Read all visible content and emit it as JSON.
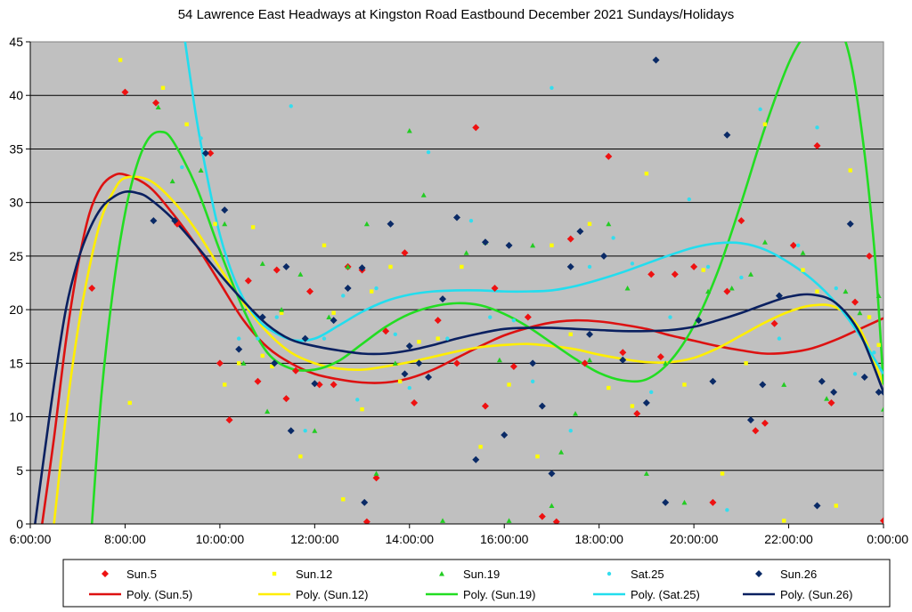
{
  "chart_data": {
    "type": "scatter",
    "title": "54 Lawrence East Headways at Kingston Road Eastbound December 2021  Sundays/Holidays",
    "xlabel": "",
    "ylabel": "",
    "xlim_hours": [
      6,
      24
    ],
    "ylim": [
      0,
      45
    ],
    "x_ticks": [
      "6:00:00",
      "8:00:00",
      "10:00:00",
      "12:00:00",
      "14:00:00",
      "16:00:00",
      "18:00:00",
      "20:00:00",
      "22:00:00",
      "0:00:00"
    ],
    "y_ticks": [
      0,
      5,
      10,
      15,
      20,
      25,
      30,
      35,
      40,
      45
    ],
    "grid": "horizontal",
    "legend_position": "bottom",
    "series": [
      {
        "name": "Sun.5",
        "color": "#ee1111",
        "marker": "diamond",
        "x": [
          7.3,
          8.0,
          8.65,
          9.1,
          9.8,
          10.0,
          10.2,
          10.6,
          10.8,
          11.2,
          11.4,
          11.6,
          11.9,
          12.1,
          12.4,
          12.7,
          13.0,
          13.1,
          13.3,
          13.5,
          13.9,
          14.1,
          14.6,
          15.0,
          15.4,
          15.6,
          15.8,
          16.2,
          16.5,
          16.8,
          17.1,
          17.4,
          17.7,
          18.2,
          18.5,
          18.8,
          19.1,
          19.3,
          19.6,
          20.0,
          20.4,
          20.7,
          21.0,
          21.3,
          21.5,
          21.7,
          22.1,
          22.6,
          22.9,
          23.4,
          23.7,
          24.0
        ],
        "y": [
          22,
          40.3,
          39.3,
          28,
          34.6,
          15,
          9.7,
          22.7,
          13.3,
          23.7,
          11.7,
          14.3,
          21.7,
          13,
          13,
          24,
          23.7,
          0.2,
          4.3,
          18,
          25.3,
          11.3,
          19,
          15,
          37,
          11,
          22,
          14.7,
          19.3,
          0.7,
          0.2,
          26.6,
          15,
          34.3,
          16,
          10.3,
          23.3,
          15.6,
          23.3,
          24,
          2,
          21.7,
          28.3,
          8.7,
          9.4,
          18.7,
          26,
          35.3,
          11.3,
          20.7,
          25,
          0.3
        ]
      },
      {
        "name": "Sun.12",
        "color": "#ffff00",
        "marker": "square",
        "x": [
          7.9,
          8.1,
          8.8,
          9.3,
          9.9,
          10.1,
          10.4,
          10.7,
          10.9,
          11.1,
          11.3,
          11.7,
          12.2,
          12.4,
          12.6,
          13.0,
          13.2,
          13.6,
          13.8,
          14.2,
          14.6,
          15.1,
          15.5,
          16.1,
          16.7,
          17.0,
          17.4,
          17.8,
          18.2,
          18.7,
          19.0,
          19.4,
          19.8,
          20.2,
          20.6,
          21.1,
          21.5,
          21.9,
          22.3,
          22.6,
          23.0,
          23.3,
          23.7,
          23.9
        ],
        "y": [
          43.3,
          11.3,
          40.7,
          37.3,
          28,
          13,
          15,
          27.7,
          15.7,
          14.7,
          19.7,
          6.3,
          26,
          19.7,
          2.3,
          10.7,
          21.7,
          24,
          13.3,
          17,
          17.3,
          24,
          7.2,
          13,
          6.3,
          26,
          17.7,
          28,
          12.7,
          11,
          32.7,
          15,
          13,
          23.7,
          4.7,
          15,
          37.3,
          0.3,
          23.7,
          21.7,
          1.7,
          33,
          19.3,
          16.7
        ]
      },
      {
        "name": "Sun.19",
        "color": "#22cc22",
        "marker": "triangle",
        "x": [
          8.7,
          9.0,
          9.6,
          10.1,
          10.5,
          10.9,
          11.0,
          11.3,
          11.7,
          12.0,
          12.3,
          12.7,
          13.1,
          13.3,
          13.7,
          14.0,
          14.3,
          14.7,
          15.2,
          15.6,
          15.9,
          16.1,
          16.6,
          17.0,
          17.2,
          17.5,
          17.8,
          18.2,
          18.6,
          19.0,
          19.4,
          19.8,
          20.3,
          20.8,
          21.2,
          21.5,
          21.9,
          22.3,
          22.8,
          23.2,
          23.5,
          23.9,
          24.0
        ],
        "y": [
          38.9,
          32,
          33,
          28,
          15,
          24.3,
          10.5,
          20,
          23.3,
          8.7,
          19.3,
          24,
          28,
          4.7,
          15,
          36.7,
          30.7,
          0.3,
          25.3,
          26.3,
          15.3,
          0.3,
          26,
          1.7,
          6.7,
          10.3,
          15.3,
          28,
          22,
          4.7,
          15,
          2,
          21.7,
          22,
          23.3,
          26.3,
          13,
          25.3,
          11.7,
          21.7,
          19.7,
          21.3,
          10.7
        ]
      },
      {
        "name": "Sat.25",
        "color": "#33ddee",
        "marker": "circle",
        "x": [
          9.2,
          9.6,
          10.4,
          10.8,
          11.2,
          11.5,
          11.8,
          12.2,
          12.6,
          12.9,
          13.3,
          13.7,
          14.0,
          14.4,
          14.8,
          15.3,
          15.7,
          16.2,
          16.6,
          17.0,
          17.4,
          17.8,
          18.3,
          18.7,
          19.1,
          19.5,
          19.9,
          20.3,
          20.7,
          21.0,
          21.4,
          21.8,
          22.2,
          22.6,
          23.0,
          23.4,
          23.8
        ],
        "y": [
          33.3,
          36,
          17.3,
          17.3,
          19.3,
          39,
          8.7,
          17.3,
          21.3,
          11.6,
          22,
          17.7,
          12.7,
          34.7,
          17.3,
          28.3,
          19.3,
          19,
          13.3,
          40.7,
          8.7,
          24,
          26.7,
          24.3,
          12.3,
          19.3,
          30.3,
          24,
          1.3,
          23,
          38.7,
          17.3,
          26,
          37,
          22,
          14,
          16
        ]
      },
      {
        "name": "Sun.26",
        "color": "#0a2a66",
        "marker": "diamond",
        "x": [
          8.6,
          9.05,
          9.7,
          10.1,
          10.4,
          10.9,
          11.15,
          11.4,
          11.5,
          11.8,
          12.0,
          12.4,
          12.7,
          13.0,
          13.05,
          13.6,
          13.9,
          14.0,
          14.2,
          14.4,
          14.7,
          15.0,
          15.4,
          15.6,
          16.0,
          16.1,
          16.6,
          16.8,
          17.0,
          17.4,
          17.6,
          17.8,
          18.1,
          18.5,
          19.0,
          19.2,
          19.4,
          20.1,
          20.4,
          20.7,
          21.2,
          21.45,
          21.8,
          22.6,
          22.7,
          22.95,
          23.3,
          23.6,
          23.9,
          24.0
        ],
        "y": [
          28.3,
          28.3,
          34.6,
          29.3,
          16.3,
          19.3,
          15,
          24,
          8.7,
          17.3,
          13.1,
          19,
          22,
          23.9,
          2,
          28,
          14,
          16.6,
          15,
          13.7,
          21,
          28.6,
          6,
          26.3,
          8.3,
          26,
          15,
          11,
          4.7,
          24,
          27.3,
          17.7,
          25,
          15.3,
          11.3,
          43.3,
          2,
          19,
          13.3,
          36.3,
          9.7,
          13,
          21.3,
          1.7,
          13.3,
          12.3,
          28,
          13.7,
          12.3,
          12.3
        ]
      }
    ],
    "trendlines": [
      {
        "name": "Poly. (Sun.5)",
        "color": "#dd1111",
        "x": [
          6.25,
          6.5,
          6.75,
          7.0,
          7.25,
          7.5,
          7.75,
          8.0,
          8.5,
          9.0,
          9.5,
          10.0,
          10.5,
          11.0,
          11.5,
          12.0,
          12.5,
          13.0,
          13.5,
          14.0,
          14.5,
          15.0,
          15.5,
          16.0,
          16.5,
          17.0,
          17.5,
          18.0,
          18.5,
          19.0,
          19.5,
          20.0,
          20.5,
          21.0,
          21.5,
          22.0,
          22.5,
          23.0,
          23.5,
          24.0
        ],
        "y": [
          0,
          8,
          17,
          24,
          29,
          31.5,
          32.5,
          32.6,
          31.5,
          29,
          26,
          22.5,
          19,
          16.5,
          15,
          14,
          13.5,
          13.2,
          13.2,
          13.6,
          14.4,
          15.5,
          16.6,
          17.6,
          18.3,
          18.8,
          19,
          18.9,
          18.6,
          18.2,
          17.6,
          17.1,
          16.6,
          16.2,
          15.9,
          16,
          16.4,
          17.2,
          18.2,
          19.2
        ]
      },
      {
        "name": "Poly. (Sun.12)",
        "color": "#ffee00",
        "x": [
          6.5,
          6.75,
          7.0,
          7.25,
          7.5,
          7.75,
          8.0,
          8.5,
          9.0,
          9.5,
          10.0,
          10.5,
          11.0,
          11.5,
          12.0,
          12.5,
          13.0,
          13.5,
          14.0,
          14.5,
          15.0,
          15.5,
          16.0,
          16.5,
          17.0,
          17.5,
          18.0,
          18.5,
          19.0,
          19.5,
          20.0,
          20.5,
          21.0,
          21.5,
          22.0,
          22.5,
          23.0,
          23.5,
          24.0
        ],
        "y": [
          0,
          10,
          18,
          24,
          28.5,
          31,
          32.3,
          32.1,
          30.2,
          27.4,
          23.9,
          20.6,
          17.9,
          16,
          15,
          14.5,
          14.4,
          14.7,
          15.1,
          15.6,
          16.1,
          16.5,
          16.7,
          16.8,
          16.6,
          16.3,
          15.8,
          15.4,
          15.1,
          15.1,
          15.5,
          16.4,
          17.6,
          18.8,
          19.8,
          20.4,
          20.2,
          18.2,
          13
        ]
      },
      {
        "name": "Poly. (Sun.19)",
        "color": "#22dd22",
        "x": [
          7.3,
          7.5,
          7.75,
          8.0,
          8.25,
          8.5,
          8.75,
          9.0,
          9.5,
          10.0,
          10.5,
          11.0,
          11.5,
          12.0,
          12.5,
          13.0,
          13.5,
          14.0,
          14.5,
          15.0,
          15.5,
          16.0,
          16.5,
          17.0,
          17.5,
          18.0,
          18.5,
          19.0,
          19.5,
          20.0,
          20.5,
          21.0,
          21.5,
          22.0,
          22.4,
          22.8,
          23.2,
          23.5,
          23.8,
          24.0
        ],
        "y": [
          0,
          12,
          22,
          29,
          33.5,
          36,
          36.6,
          35.8,
          31.5,
          25.5,
          20,
          16,
          14.5,
          14.4,
          15.2,
          16.8,
          18.4,
          19.6,
          20.3,
          20.6,
          20.4,
          19.6,
          18.4,
          16.9,
          15.4,
          14.1,
          13.4,
          13.5,
          15.2,
          18.5,
          23.5,
          30,
          37,
          43,
          46,
          47.5,
          45,
          38,
          26,
          13
        ]
      },
      {
        "name": "Poly. (Sat.25)",
        "color": "#22ddee",
        "x": [
          9.25,
          9.5,
          9.75,
          10.0,
          10.25,
          10.5,
          10.75,
          11.0,
          11.5,
          12.0,
          12.5,
          13.0,
          13.5,
          14.0,
          14.5,
          15.0,
          15.5,
          16.0,
          16.5,
          17.0,
          17.5,
          18.0,
          18.5,
          19.0,
          19.5,
          20.0,
          20.5,
          21.0,
          21.5,
          22.0,
          22.5,
          23.0,
          23.5,
          24.0
        ],
        "y": [
          45.5,
          38,
          32,
          27,
          23.5,
          21,
          19.4,
          18.3,
          17.2,
          17.3,
          18.5,
          19.8,
          20.8,
          21.4,
          21.7,
          21.8,
          21.8,
          21.7,
          21.7,
          21.8,
          22.2,
          22.8,
          23.5,
          24.3,
          25.1,
          25.8,
          26.2,
          26.2,
          25.6,
          24.4,
          22.8,
          20.6,
          17.6,
          14
        ]
      },
      {
        "name": "Poly. (Sun.26)",
        "color": "#0a2060",
        "x": [
          6.1,
          6.25,
          6.5,
          6.75,
          7.0,
          7.25,
          7.5,
          7.75,
          8.0,
          8.25,
          8.5,
          9.0,
          9.5,
          10.0,
          10.5,
          11.0,
          11.5,
          12.0,
          12.5,
          13.0,
          13.5,
          14.0,
          14.5,
          15.0,
          15.5,
          16.0,
          16.5,
          17.0,
          17.5,
          18.0,
          18.5,
          19.0,
          19.5,
          20.0,
          20.5,
          21.0,
          21.5,
          22.0,
          22.5,
          23.0,
          23.5,
          24.0
        ],
        "y": [
          0,
          5,
          13,
          20,
          24.5,
          27.5,
          29.5,
          30.5,
          31,
          30.9,
          30.4,
          28.5,
          26,
          23.3,
          20.8,
          18.6,
          17.2,
          16.6,
          16.2,
          15.9,
          15.9,
          16.2,
          16.7,
          17.3,
          17.8,
          18.2,
          18.3,
          18.3,
          18.2,
          18.1,
          18,
          18,
          18.1,
          18.4,
          19,
          19.7,
          20.5,
          21.2,
          21.4,
          20.6,
          17.8,
          12.3
        ]
      }
    ],
    "legend": [
      {
        "label": "Sun.5",
        "kind": "marker",
        "ref": 0
      },
      {
        "label": "Sun.12",
        "kind": "marker",
        "ref": 1
      },
      {
        "label": "Sun.19",
        "kind": "marker",
        "ref": 2
      },
      {
        "label": "Sat.25",
        "kind": "marker",
        "ref": 3
      },
      {
        "label": "Sun.26",
        "kind": "marker",
        "ref": 4
      },
      {
        "label": "Poly. (Sun.5)",
        "kind": "line",
        "ref": 0
      },
      {
        "label": "Poly. (Sun.12)",
        "kind": "line",
        "ref": 1
      },
      {
        "label": "Poly. (Sun.19)",
        "kind": "line",
        "ref": 2
      },
      {
        "label": "Poly. (Sat.25)",
        "kind": "line",
        "ref": 3
      },
      {
        "label": "Poly. (Sun.26)",
        "kind": "line",
        "ref": 4
      }
    ],
    "plot_background": "#c0c0c0"
  }
}
